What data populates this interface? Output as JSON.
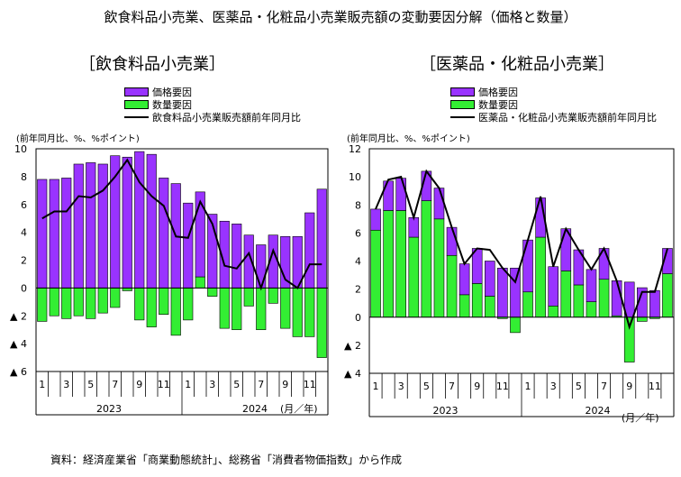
{
  "title": "飲食料品小売業、医薬品・化粧品小売業販売額の変動要因分解（価格と数量）",
  "source": "資料：経済産業省「商業動態統計」、総務省「消費者物価指数」から作成",
  "colors": {
    "price": "#9933FF",
    "quantity": "#33EE33",
    "line": "#000000"
  },
  "chart_data": [
    {
      "type": "bar",
      "title": "［飲食料品小売業］",
      "unit_label": "(前年同月比、%、%ポイント)",
      "month_labels": [
        "1",
        "",
        "3",
        "",
        "5",
        "",
        "7",
        "",
        "9",
        "",
        "11",
        "",
        "1",
        "",
        "3",
        "",
        "5",
        "",
        "7",
        "",
        "9",
        "",
        "11",
        ""
      ],
      "year_labels": [
        "2023",
        "2024"
      ],
      "axis_note": "(月／年)",
      "ylim": [
        -6,
        10
      ],
      "yticks": [
        {
          "v": 10,
          "label": "10"
        },
        {
          "v": 8,
          "label": "8"
        },
        {
          "v": 6,
          "label": "6"
        },
        {
          "v": 4,
          "label": "4"
        },
        {
          "v": 2,
          "label": "2"
        },
        {
          "v": 0,
          "label": "0"
        },
        {
          "v": -2,
          "label": "▲ 2"
        },
        {
          "v": -4,
          "label": "▲ 4"
        },
        {
          "v": -6,
          "label": "▲ 6"
        }
      ],
      "series": [
        {
          "name": "価格要因",
          "type": "bar",
          "values": [
            7.8,
            7.8,
            7.9,
            8.9,
            9.0,
            8.9,
            9.5,
            9.4,
            9.8,
            9.6,
            7.9,
            7.5,
            6.1,
            6.1,
            5.3,
            4.8,
            4.6,
            3.8,
            3.1,
            3.8,
            3.7,
            3.7,
            5.4,
            7.1
          ]
        },
        {
          "name": "数量要因",
          "type": "bar",
          "values": [
            -2.4,
            -2.0,
            -2.2,
            -2.0,
            -2.2,
            -1.8,
            -1.4,
            -0.2,
            -2.3,
            -2.8,
            -1.9,
            -3.4,
            -2.3,
            0.8,
            -0.6,
            -2.9,
            -3.0,
            -1.3,
            -3.0,
            -1.1,
            -2.9,
            -3.5,
            -3.5,
            -5.0
          ]
        },
        {
          "name": "飲食料品小売業販売額前年同月比",
          "type": "line",
          "values": [
            5.0,
            5.5,
            5.5,
            6.6,
            6.5,
            7.0,
            8.0,
            9.2,
            7.6,
            6.6,
            5.9,
            3.7,
            3.6,
            6.2,
            4.6,
            1.6,
            1.4,
            2.5,
            0.0,
            2.7,
            0.6,
            0.0,
            1.7,
            1.7
          ]
        }
      ]
    },
    {
      "type": "bar",
      "title": "［医薬品・化粧品小売業］",
      "unit_label": "(前年同月比、%、%ポイント)",
      "month_labels": [
        "1",
        "",
        "3",
        "",
        "5",
        "",
        "7",
        "",
        "9",
        "",
        "11",
        "",
        "1",
        "",
        "3",
        "",
        "5",
        "",
        "7",
        "",
        "9",
        "",
        "11",
        ""
      ],
      "year_labels": [
        "2023",
        "2024"
      ],
      "axis_note": "(月／年)",
      "ylim": [
        -4,
        12
      ],
      "yticks": [
        {
          "v": 12,
          "label": "12"
        },
        {
          "v": 10,
          "label": "10"
        },
        {
          "v": 8,
          "label": "8"
        },
        {
          "v": 6,
          "label": "6"
        },
        {
          "v": 4,
          "label": "4"
        },
        {
          "v": 2,
          "label": "2"
        },
        {
          "v": 0,
          "label": "0"
        },
        {
          "v": -2,
          "label": "▲ 2"
        },
        {
          "v": -4,
          "label": "▲ 4"
        }
      ],
      "series": [
        {
          "name": "価格要因",
          "type": "bar",
          "values": [
            1.5,
            2.1,
            2.3,
            1.4,
            2.1,
            2.2,
            2.0,
            2.2,
            2.5,
            2.5,
            3.5,
            3.5,
            3.7,
            2.8,
            2.8,
            3.0,
            2.5,
            2.3,
            2.2,
            2.5,
            2.5,
            2.1,
            1.9,
            1.8
          ]
        },
        {
          "name": "数量要因",
          "type": "bar",
          "values": [
            6.2,
            7.6,
            7.6,
            5.7,
            8.3,
            7.0,
            4.4,
            1.6,
            2.4,
            1.5,
            -0.1,
            -1.1,
            1.8,
            5.7,
            0.8,
            3.3,
            2.3,
            1.1,
            2.7,
            0.1,
            -3.2,
            -0.3,
            -0.1,
            3.1
          ]
        },
        {
          "name": "医薬品・化粧品小売業販売額前年同月比",
          "type": "line",
          "values": [
            7.7,
            9.8,
            10.0,
            7.1,
            10.4,
            9.2,
            6.4,
            3.8,
            4.9,
            4.8,
            3.5,
            2.5,
            5.5,
            8.6,
            3.6,
            6.3,
            4.8,
            3.4,
            4.9,
            2.6,
            -0.7,
            1.8,
            1.8,
            4.9
          ]
        }
      ]
    }
  ]
}
